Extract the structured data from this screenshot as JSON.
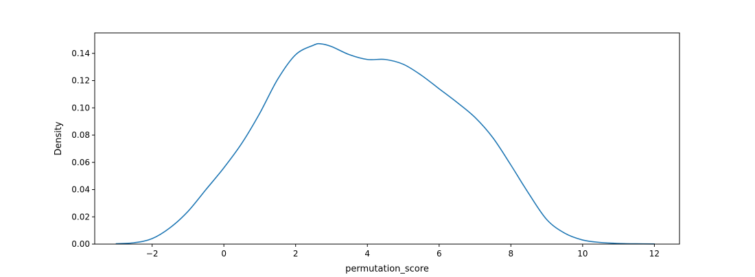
{
  "chart_data": {
    "type": "line",
    "title": "",
    "xlabel": "permutation_score",
    "ylabel": "Density",
    "xlim": [
      -3.6,
      12.7
    ],
    "ylim": [
      0,
      0.155
    ],
    "x_ticks": [
      -2,
      0,
      2,
      4,
      6,
      8,
      10,
      12
    ],
    "x_tick_labels": [
      "−2",
      "0",
      "2",
      "4",
      "6",
      "8",
      "10",
      "12"
    ],
    "y_ticks": [
      0,
      0.02,
      0.04,
      0.06,
      0.08,
      0.1,
      0.12,
      0.14
    ],
    "y_tick_labels": [
      "0.00",
      "0.02",
      "0.04",
      "0.06",
      "0.08",
      "0.10",
      "0.12",
      "0.14"
    ],
    "grid": false,
    "legend": "none",
    "line_color": "#1f77b4",
    "series": [
      {
        "x": [
          -3.0,
          -2.5,
          -2.0,
          -1.5,
          -1.0,
          -0.5,
          0.0,
          0.5,
          1.0,
          1.5,
          2.0,
          2.5,
          2.7,
          3.0,
          3.5,
          4.0,
          4.5,
          5.0,
          5.5,
          6.0,
          6.5,
          7.0,
          7.5,
          8.0,
          8.5,
          9.0,
          9.5,
          10.0,
          10.5,
          11.0,
          11.5,
          12.0
        ],
        "y": [
          0.0003,
          0.001,
          0.004,
          0.012,
          0.024,
          0.04,
          0.056,
          0.074,
          0.096,
          0.121,
          0.139,
          0.146,
          0.147,
          0.145,
          0.139,
          0.1355,
          0.1355,
          0.132,
          0.124,
          0.114,
          0.104,
          0.093,
          0.078,
          0.058,
          0.037,
          0.018,
          0.008,
          0.003,
          0.0012,
          0.0005,
          0.0002,
          0.0001
        ]
      }
    ]
  }
}
